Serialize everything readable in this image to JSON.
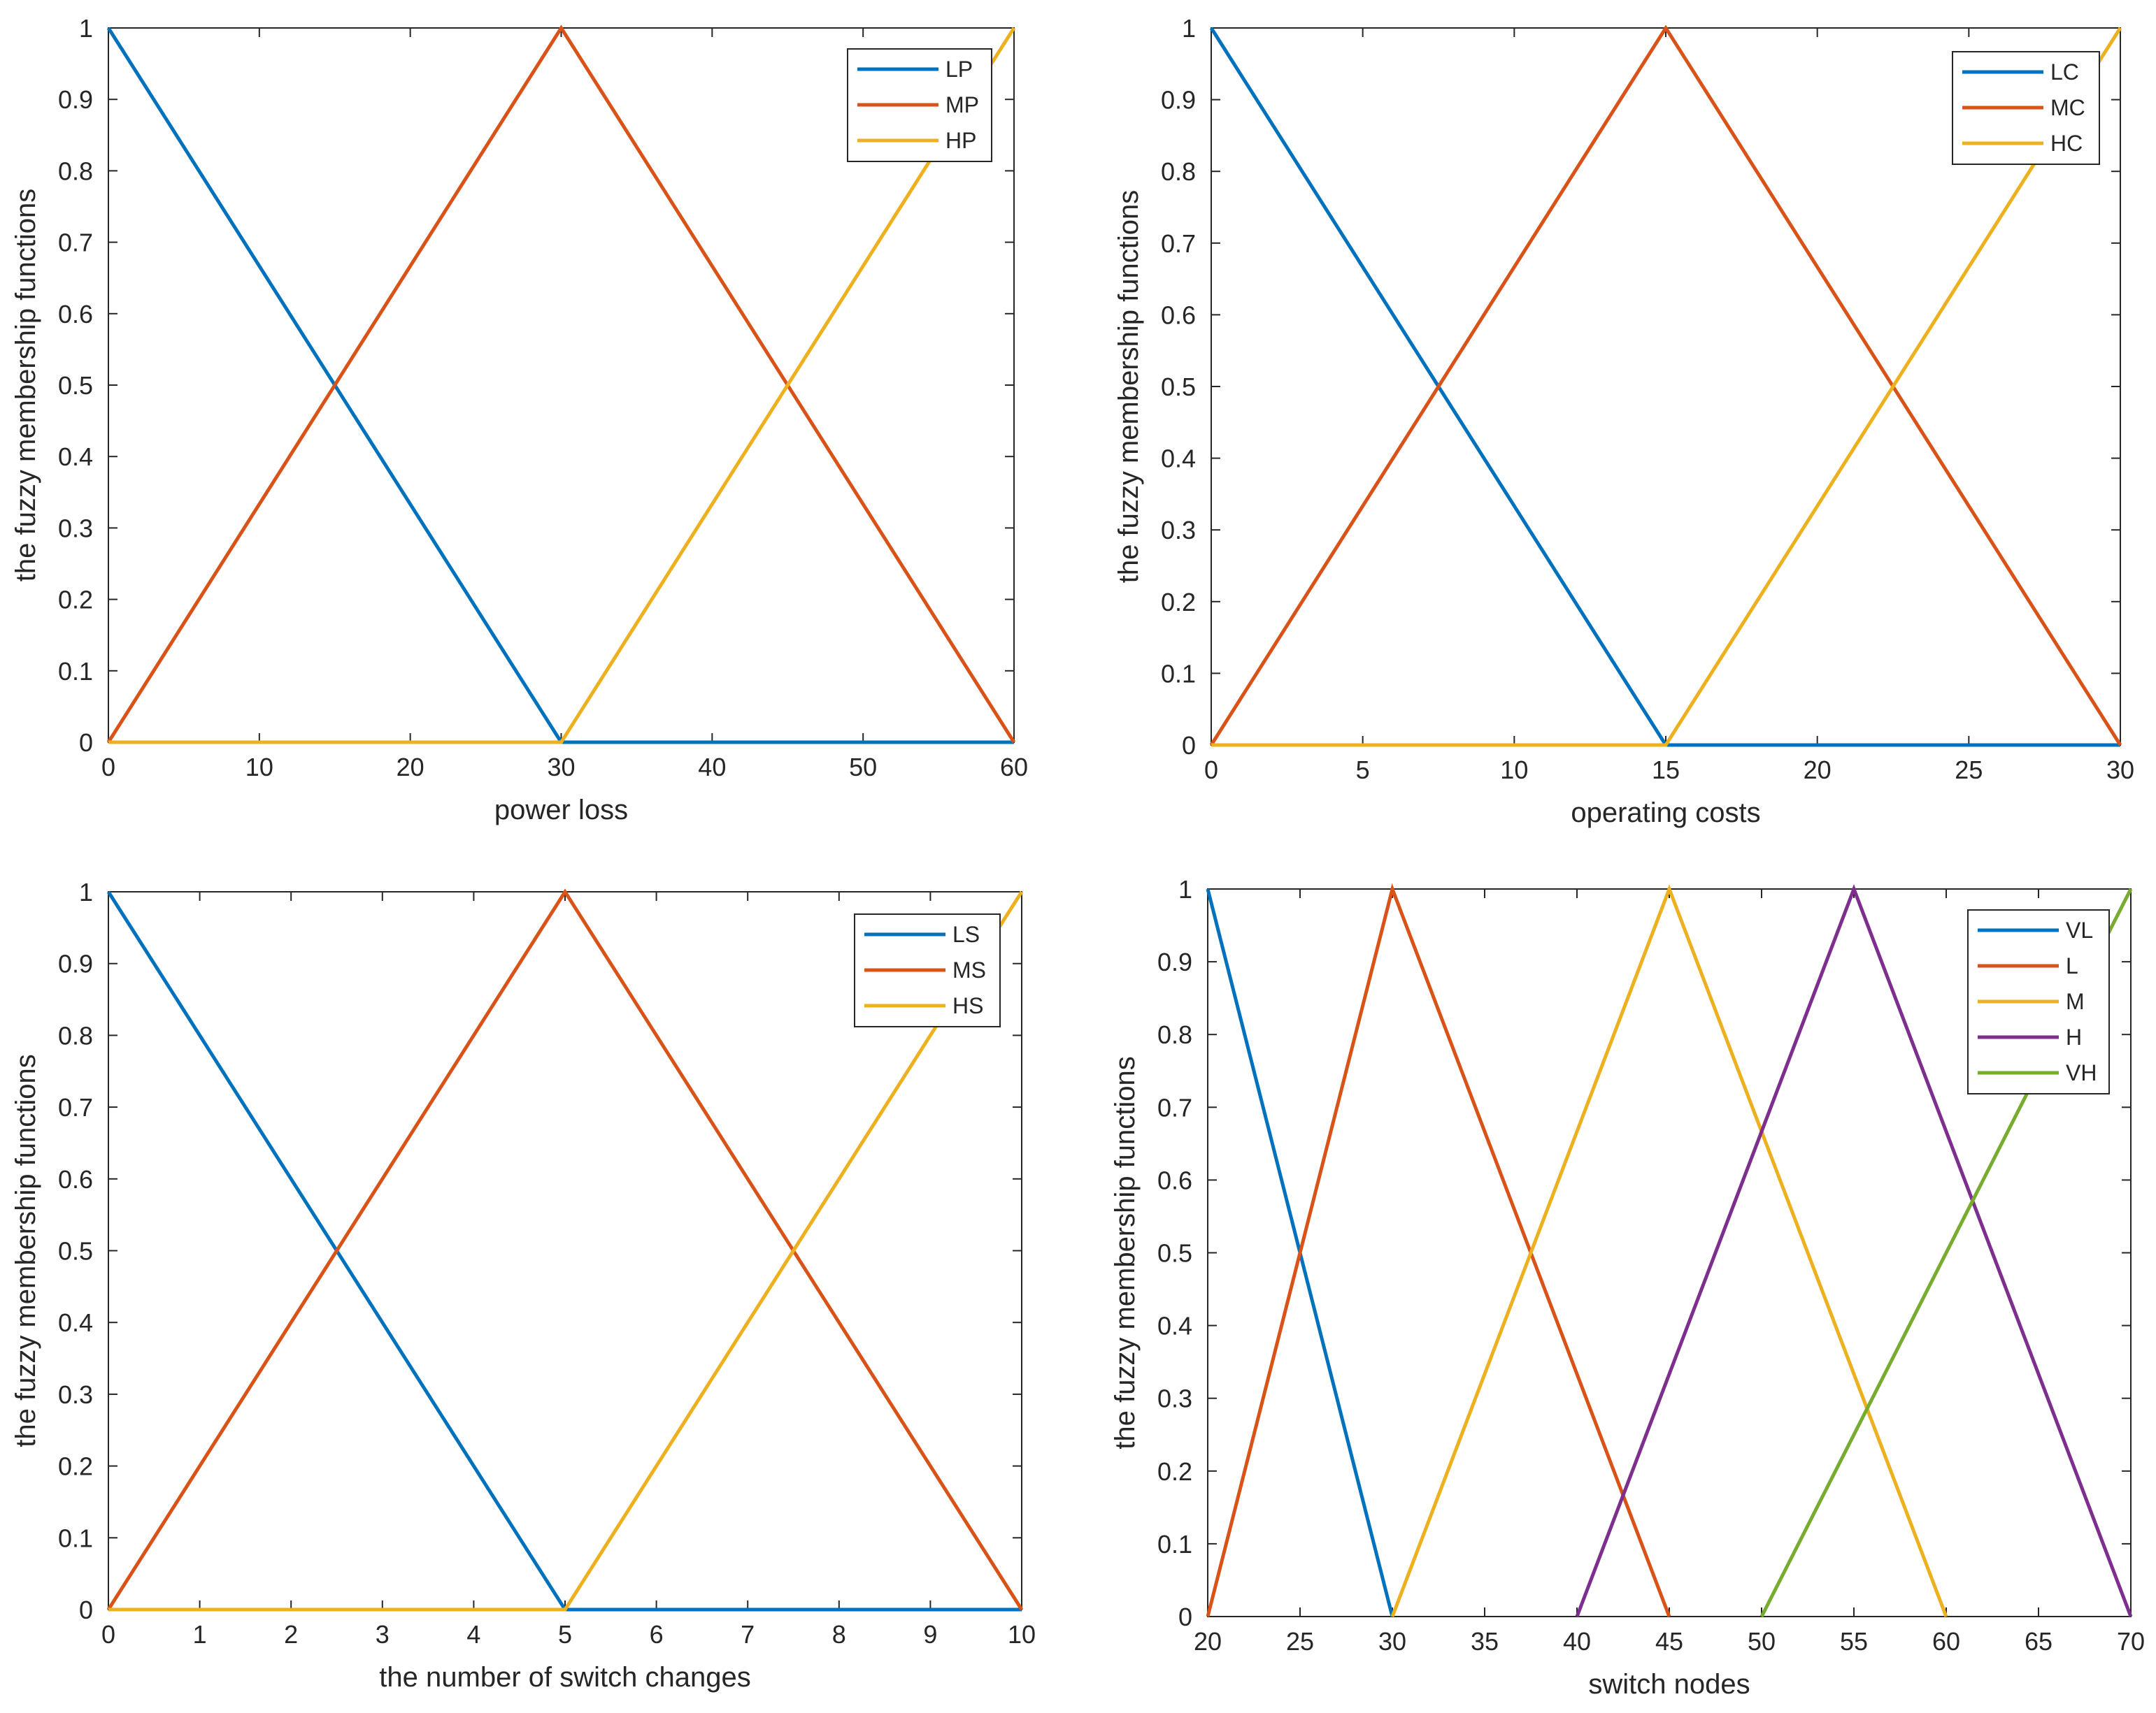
{
  "colors": {
    "blue": "#0072BD",
    "orange": "#D95319",
    "yellow": "#EDB120",
    "purple": "#7E2F8E",
    "green": "#77AC30",
    "axis": "#262626"
  },
  "chart_data": [
    {
      "type": "line",
      "xlabel": "power loss",
      "ylabel": "the fuzzy membership functions",
      "xlim": [
        0,
        60
      ],
      "ylim": [
        0,
        1
      ],
      "xticks": [
        0,
        10,
        20,
        30,
        40,
        50,
        60
      ],
      "xtick_labels": [
        "0",
        "10",
        "20",
        "30",
        "40",
        "50",
        "60"
      ],
      "yticks": [
        0,
        0.1,
        0.2,
        0.3,
        0.4,
        0.5,
        0.6,
        0.7,
        0.8,
        0.9,
        1
      ],
      "ytick_labels": [
        "0",
        "0.1",
        "0.2",
        "0.3",
        "0.4",
        "0.5",
        "0.6",
        "0.7",
        "0.8",
        "0.9",
        "1"
      ],
      "legend_position": "top-right",
      "series": [
        {
          "name": "LP",
          "color": "#0072BD",
          "x": [
            0,
            30,
            60
          ],
          "y": [
            1,
            0,
            0
          ]
        },
        {
          "name": "MP",
          "color": "#D95319",
          "x": [
            0,
            30,
            60
          ],
          "y": [
            0,
            1,
            0
          ]
        },
        {
          "name": "HP",
          "color": "#EDB120",
          "x": [
            0,
            30,
            60
          ],
          "y": [
            0,
            0,
            1
          ]
        }
      ]
    },
    {
      "type": "line",
      "xlabel": "operating costs",
      "ylabel": "the fuzzy membership functions",
      "xlim": [
        0,
        30
      ],
      "ylim": [
        0,
        1
      ],
      "xticks": [
        0,
        5,
        10,
        15,
        20,
        25,
        30
      ],
      "xtick_labels": [
        "0",
        "5",
        "10",
        "15",
        "20",
        "25",
        "30"
      ],
      "yticks": [
        0,
        0.1,
        0.2,
        0.3,
        0.4,
        0.5,
        0.6,
        0.7,
        0.8,
        0.9,
        1
      ],
      "ytick_labels": [
        "0",
        "0.1",
        "0.2",
        "0.3",
        "0.4",
        "0.5",
        "0.6",
        "0.7",
        "0.8",
        "0.9",
        "1"
      ],
      "legend_position": "top-right",
      "series": [
        {
          "name": "LC",
          "color": "#0072BD",
          "x": [
            0,
            15,
            30
          ],
          "y": [
            1,
            0,
            0
          ]
        },
        {
          "name": "MC",
          "color": "#D95319",
          "x": [
            0,
            15,
            30
          ],
          "y": [
            0,
            1,
            0
          ]
        },
        {
          "name": "HC",
          "color": "#EDB120",
          "x": [
            0,
            15,
            30
          ],
          "y": [
            0,
            0,
            1
          ]
        }
      ]
    },
    {
      "type": "line",
      "xlabel": "the number of switch changes",
      "ylabel": "the fuzzy membership functions",
      "xlim": [
        0,
        10
      ],
      "ylim": [
        0,
        1
      ],
      "xticks": [
        0,
        1,
        2,
        3,
        4,
        5,
        6,
        7,
        8,
        9,
        10
      ],
      "xtick_labels": [
        "0",
        "1",
        "2",
        "3",
        "4",
        "5",
        "6",
        "7",
        "8",
        "9",
        "10"
      ],
      "yticks": [
        0,
        0.1,
        0.2,
        0.3,
        0.4,
        0.5,
        0.6,
        0.7,
        0.8,
        0.9,
        1
      ],
      "ytick_labels": [
        "0",
        "0.1",
        "0.2",
        "0.3",
        "0.4",
        "0.5",
        "0.6",
        "0.7",
        "0.8",
        "0.9",
        "1"
      ],
      "legend_position": "top-right",
      "series": [
        {
          "name": "LS",
          "color": "#0072BD",
          "x": [
            0,
            5,
            10
          ],
          "y": [
            1,
            0,
            0
          ]
        },
        {
          "name": "MS",
          "color": "#D95319",
          "x": [
            0,
            5,
            10
          ],
          "y": [
            0,
            1,
            0
          ]
        },
        {
          "name": "HS",
          "color": "#EDB120",
          "x": [
            0,
            5,
            10
          ],
          "y": [
            0,
            0,
            1
          ]
        }
      ]
    },
    {
      "type": "line",
      "xlabel": "switch nodes",
      "ylabel": "the fuzzy membership functions",
      "xlim": [
        20,
        70
      ],
      "ylim": [
        0,
        1
      ],
      "xticks": [
        20,
        25,
        30,
        35,
        40,
        45,
        50,
        55,
        60,
        65,
        70
      ],
      "xtick_labels": [
        "20",
        "25",
        "30",
        "35",
        "40",
        "45",
        "50",
        "55",
        "60",
        "65",
        "70"
      ],
      "yticks": [
        0,
        0.1,
        0.2,
        0.3,
        0.4,
        0.5,
        0.6,
        0.7,
        0.8,
        0.9,
        1
      ],
      "ytick_labels": [
        "0",
        "0.1",
        "0.2",
        "0.3",
        "0.4",
        "0.5",
        "0.6",
        "0.7",
        "0.8",
        "0.9",
        "1"
      ],
      "legend_position": "top-right",
      "series": [
        {
          "name": "VL",
          "color": "#0072BD",
          "x": [
            20,
            30
          ],
          "y": [
            1,
            0
          ]
        },
        {
          "name": "L",
          "color": "#D95319",
          "x": [
            20,
            30,
            45
          ],
          "y": [
            0,
            1,
            0
          ]
        },
        {
          "name": "M",
          "color": "#EDB120",
          "x": [
            30,
            45,
            60
          ],
          "y": [
            0,
            1,
            0
          ]
        },
        {
          "name": "H",
          "color": "#7E2F8E",
          "x": [
            40,
            55,
            70
          ],
          "y": [
            0,
            1,
            0
          ]
        },
        {
          "name": "VH",
          "color": "#77AC30",
          "x": [
            50,
            70
          ],
          "y": [
            0,
            1
          ]
        }
      ]
    }
  ]
}
